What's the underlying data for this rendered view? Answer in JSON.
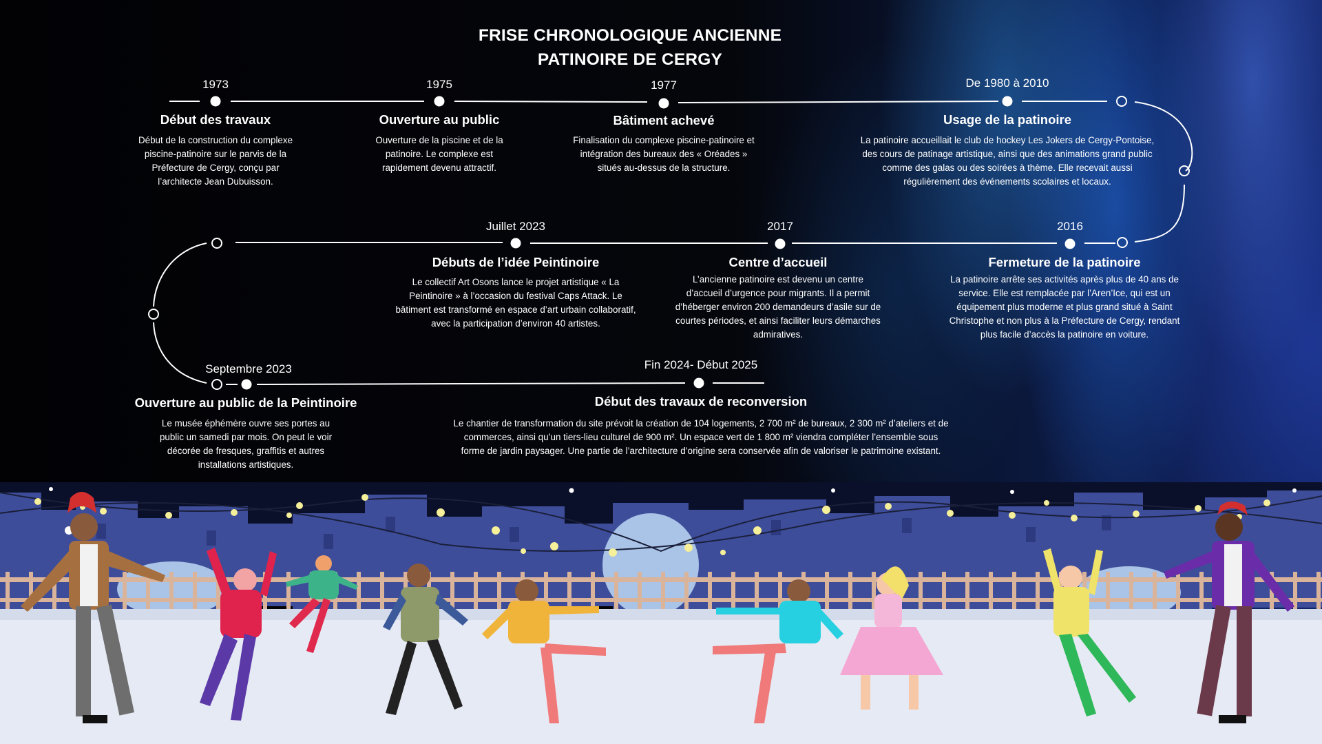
{
  "title": {
    "line1": "FRISE CHRONOLOGIQUE ANCIENNE",
    "line2": "PATINOIRE DE CERGY"
  },
  "colors": {
    "text": "#ffffff",
    "line": "#ffffff",
    "sky_dark": "#05060c",
    "aurora_blue": "#1e5ac0",
    "rink_ice": "#e6eaf4",
    "city_silhouette": "#3d4c98",
    "fence": "#d9b49b"
  },
  "events": [
    {
      "date": "1973",
      "title": "Début des travaux",
      "description": "Début de la construction du complexe piscine-patinoire sur le parvis de la Préfecture de Cergy, conçu par l’architecte Jean Dubuisson."
    },
    {
      "date": "1975",
      "title": "Ouverture au public",
      "description": "Ouverture de la piscine et de la patinoire. Le complexe est rapidement devenu attractif."
    },
    {
      "date": "1977",
      "title": "Bâtiment achevé",
      "description": "Finalisation du complexe piscine-patinoire et intégration des bureaux des « Oréades » situés au-dessus de la structure."
    },
    {
      "date": "De 1980 à 2010",
      "title": "Usage de la patinoire",
      "description": "La patinoire accueillait le club de hockey Les Jokers de Cergy-Pontoise, des cours de patinage artistique, ainsi que des animations grand public comme des galas ou des soirées à thème. Elle recevait aussi régulièrement des événements scolaires et locaux."
    },
    {
      "date": "2016",
      "title": "Fermeture de la patinoire",
      "description": "La patinoire arrête ses activités après plus de 40 ans de service. Elle est remplacée par l’Aren’Ice, qui est un équipement plus moderne et plus grand situé à Saint Christophe et non plus à la Préfecture de Cergy, rendant plus facile d’accès la patinoire en voiture."
    },
    {
      "date": "2017",
      "title": "Centre d’accueil",
      "description": "L’ancienne patinoire est devenu un centre d’accueil d’urgence pour migrants. Il a permit d’héberger environ 200 demandeurs d’asile sur de courtes périodes, et ainsi faciliter leurs démarches admiratives."
    },
    {
      "date": "Juillet 2023",
      "title": "Débuts de l’idée Peintinoire",
      "description": "Le collectif Art Osons lance le projet artistique « La Peintinoire » à l’occasion du festival Caps Attack. Le bâtiment est transformé en espace d’art urbain collaboratif, avec la participation d’environ 40 artistes."
    },
    {
      "date": "Septembre 2023",
      "title": "Ouverture au public de la Peintinoire",
      "description": "Le musée éphémère ouvre ses portes au public un samedi par mois. On peut le voir décorée de fresques, graffitis et autres installations artistiques."
    },
    {
      "date": "Fin 2024- Début 2025",
      "title": "Début des travaux de reconversion",
      "description": "Le chantier de transformation du site prévoit la création de 104 logements, 2 700 m² de bureaux, 2 300 m² d’ateliers et de commerces, ainsi qu’un tiers-lieu culturel de 900 m². Un espace vert de 1 800 m² viendra compléter l’ensemble sous forme de jardin paysager. Une partie de l’architecture d’origine sera conservée afin de valoriser le patrimoine existant."
    }
  ]
}
